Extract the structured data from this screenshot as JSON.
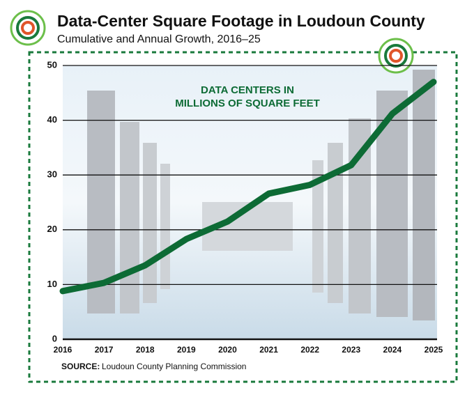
{
  "chart_data": {
    "type": "line",
    "title": "Data-Center Square Footage in Loudoun County",
    "subtitle": "Cumulative and Annual Growth, 2016–25",
    "annotation": [
      "DATA CENTERS IN",
      "MILLIONS OF SQUARE FEET"
    ],
    "source_label": "SOURCE:",
    "source": "Loudoun County Planning Commission",
    "categories": [
      "2016",
      "2017",
      "2018",
      "2019",
      "2020",
      "2021",
      "2022",
      "2023",
      "2024",
      "2025"
    ],
    "values": [
      8.8,
      10.3,
      13.5,
      18.3,
      21.5,
      26.6,
      28.2,
      31.8,
      41.2,
      47
    ],
    "color": "#0d6b35",
    "ylim": [
      0,
      50
    ],
    "yticks": [
      0,
      10,
      20,
      30,
      40,
      50
    ],
    "grid": true
  }
}
